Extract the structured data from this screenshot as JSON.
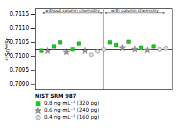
{
  "chart_data": {
    "type": "scatter",
    "ylabel": "⁸⁷Sr/⁸⁶Sr",
    "xlim": [
      0,
      22
    ],
    "ylim": [
      0.7088,
      0.7117
    ],
    "yticks": [
      {
        "value": 0.709,
        "label": "0.7090"
      },
      0.7095,
      {
        "value": 0.71,
        "label": "0.7100"
      },
      0.7105,
      {
        "value": 0.711,
        "label": "0.7110"
      },
      0.7115
    ],
    "tick_labels": "y",
    "legend": "bottom",
    "legend_title": "NIST SRM 987",
    "series": [
      {
        "name": "0.8 ng·mL⁻¹ (320 pg)",
        "color": "#00dd00",
        "marker": "square",
        "x": [
          1,
          3,
          4,
          6,
          7,
          12,
          13,
          15,
          17,
          19
        ],
        "values": [
          0.7102,
          0.71035,
          0.7105,
          0.71025,
          0.71045,
          0.7105,
          0.7104,
          0.71052,
          0.7103,
          0.71035
        ]
      },
      {
        "name": "0.6 ng·mL⁻¹ (240 pg)",
        "color": "#999999",
        "marker": "star",
        "x": [
          2,
          5,
          8,
          14,
          16,
          18
        ],
        "values": [
          0.7102,
          0.71015,
          0.7102,
          0.7103,
          0.71025,
          0.71022
        ]
      },
      {
        "name": "0.4 ng·mL⁻¹ (160 pg)",
        "color": "#dddddd",
        "marker": "circle",
        "x": [
          9,
          10,
          11,
          20,
          21
        ],
        "values": [
          0.71005,
          0.71018,
          0.71025,
          0.71025,
          0.71028
        ]
      }
    ],
    "hline": {
      "y": 0.71025,
      "color": "#000000"
    },
    "vline": {
      "x": 11,
      "color": "gray"
    },
    "annotations": [
      {
        "text": "without column chemistry",
        "x_from": 1,
        "x_to": 11,
        "y": 0.71155
      },
      {
        "text": "with column chemistry",
        "x_from": 11,
        "x_to": 21,
        "y": 0.71155
      }
    ]
  }
}
